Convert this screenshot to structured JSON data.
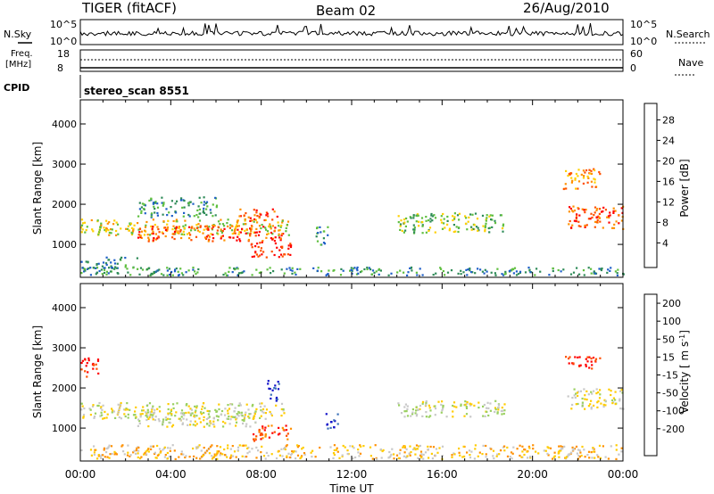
{
  "header": {
    "title": "TIGER (fitACF)",
    "beam": "Beam 02",
    "date": "26/Aug/2010"
  },
  "nsky_panel": {
    "label": "N.Sky",
    "ylim_labels_left": [
      "10^5",
      "10^0"
    ],
    "ylim_labels_right": [
      "10^5",
      "10^0"
    ],
    "right_label": "N.Search"
  },
  "freq_panel": {
    "label_line1": "Freq.",
    "label_line2": "[MHz]",
    "ticks_left": [
      "18",
      "8"
    ],
    "ticks_right": [
      "60",
      "0"
    ],
    "right_label": "Nave"
  },
  "cpid_panel": {
    "label": "CPID",
    "program": "stereo_scan 8551"
  },
  "chart_data": [
    {
      "type": "heatmap",
      "quantity": "Power",
      "ylabel": "Slant Range [km]",
      "yticks": [
        1000,
        2000,
        3000,
        4000
      ],
      "ylim": [
        180,
        4600
      ],
      "x_ticks": [
        "00:00",
        "04:00",
        "08:00",
        "12:00",
        "16:00",
        "20:00",
        "00:00"
      ],
      "xlim_hours": [
        0,
        24
      ],
      "colorbar": {
        "label": "Power [dB]",
        "ticks": [
          "28",
          "24",
          "20",
          "16",
          "12",
          "8",
          "4"
        ],
        "colors": [
          "#0000ff",
          "#1f5fc8",
          "#2e8b57",
          "#5fbf3f",
          "#ffd000",
          "#ff9000",
          "#ff5000",
          "#ff0000"
        ]
      },
      "regions": [
        {
          "t0": 0.0,
          "t1": 9.2,
          "r0": 1250,
          "r1": 1650,
          "level": 4
        },
        {
          "t0": 2.5,
          "t1": 9.0,
          "r0": 1100,
          "r1": 1500,
          "level": 6
        },
        {
          "t0": 7.5,
          "t1": 9.3,
          "r0": 700,
          "r1": 1100,
          "level": 7
        },
        {
          "t0": 7.0,
          "t1": 8.8,
          "r0": 1600,
          "r1": 1900,
          "level": 6
        },
        {
          "t0": 0.0,
          "t1": 2.5,
          "r0": 400,
          "r1": 700,
          "level": 2
        },
        {
          "t0": 0.0,
          "t1": 24.0,
          "r0": 250,
          "r1": 450,
          "level": 2
        },
        {
          "t0": 14.0,
          "t1": 18.8,
          "r0": 1300,
          "r1": 1800,
          "level": 3
        },
        {
          "t0": 21.5,
          "t1": 24.0,
          "r0": 1400,
          "r1": 2000,
          "level": 6
        },
        {
          "t0": 21.3,
          "t1": 23.0,
          "r0": 2400,
          "r1": 2900,
          "level": 5
        },
        {
          "t0": 2.5,
          "t1": 6.0,
          "r0": 1700,
          "r1": 2200,
          "level": 2
        },
        {
          "t0": 10.4,
          "t1": 11.0,
          "r0": 1000,
          "r1": 1500,
          "level": 2
        }
      ]
    },
    {
      "type": "heatmap",
      "quantity": "Velocity",
      "ylabel": "Slant Range [km]",
      "yticks": [
        1000,
        2000,
        3000,
        4000
      ],
      "ylim": [
        180,
        4600
      ],
      "x_ticks": [
        "00:00",
        "04:00",
        "08:00",
        "12:00",
        "16:00",
        "20:00",
        "00:00"
      ],
      "xlim_hours": [
        0,
        24
      ],
      "xlabel": "Time UT",
      "colorbar": {
        "label": "Velocity [ m s",
        "label_sup": "-1",
        "ticks": [
          "200",
          "100",
          "50",
          "15",
          "-15",
          "-50",
          "-100",
          "-200"
        ],
        "colors": [
          "#1010c8",
          "#3a70b8",
          "#4aa040",
          "#9ad060",
          "#c8c8c8",
          "#ffcc00",
          "#ff9000",
          "#ff5000",
          "#ff0000"
        ]
      },
      "regions": [
        {
          "t0": 0.0,
          "t1": 9.0,
          "r0": 1250,
          "r1": 1650,
          "level": 4
        },
        {
          "t0": 2.5,
          "t1": 8.0,
          "r0": 1050,
          "r1": 1450,
          "level": 4
        },
        {
          "t0": 7.5,
          "t1": 9.3,
          "r0": 700,
          "r1": 1100,
          "level": 7
        },
        {
          "t0": 0.0,
          "t1": 24.0,
          "r0": 250,
          "r1": 600,
          "level": 5
        },
        {
          "t0": 8.2,
          "t1": 8.8,
          "r0": 1700,
          "r1": 2200,
          "level": 0
        },
        {
          "t0": 10.8,
          "t1": 11.4,
          "r0": 1000,
          "r1": 1400,
          "level": 0
        },
        {
          "t0": 14.0,
          "t1": 18.8,
          "r0": 1300,
          "r1": 1700,
          "level": 4
        },
        {
          "t0": 21.5,
          "t1": 24.0,
          "r0": 1500,
          "r1": 2000,
          "level": 4
        },
        {
          "t0": 21.3,
          "t1": 23.0,
          "r0": 2500,
          "r1": 2800,
          "level": 8
        },
        {
          "t0": 0.0,
          "t1": 0.8,
          "r0": 2300,
          "r1": 2800,
          "level": 8
        }
      ]
    }
  ]
}
